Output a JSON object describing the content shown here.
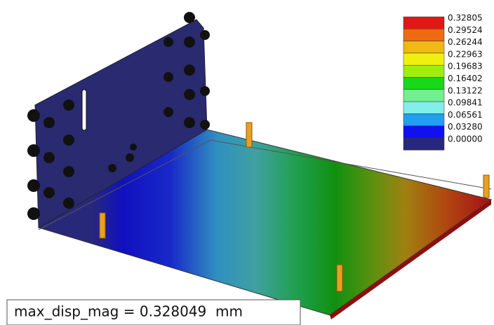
{
  "legend": {
    "entries": [
      {
        "label": "0.32805",
        "color": "#e01818"
      },
      {
        "label": "0.29524",
        "color": "#f06a10"
      },
      {
        "label": "0.26244",
        "color": "#f0b814"
      },
      {
        "label": "0.22963",
        "color": "#f0f010"
      },
      {
        "label": "0.19683",
        "color": "#a0ee10"
      },
      {
        "label": "0.16402",
        "color": "#18d818"
      },
      {
        "label": "0.13122",
        "color": "#70f090"
      },
      {
        "label": "0.09841",
        "color": "#80f0e8"
      },
      {
        "label": "0.06561",
        "color": "#20a0f0"
      },
      {
        "label": "0.03280",
        "color": "#1010f0"
      },
      {
        "label": "0.00000",
        "color": "#28287a"
      }
    ]
  },
  "annotation": "max_disp_mag = 0.328049  mm"
}
